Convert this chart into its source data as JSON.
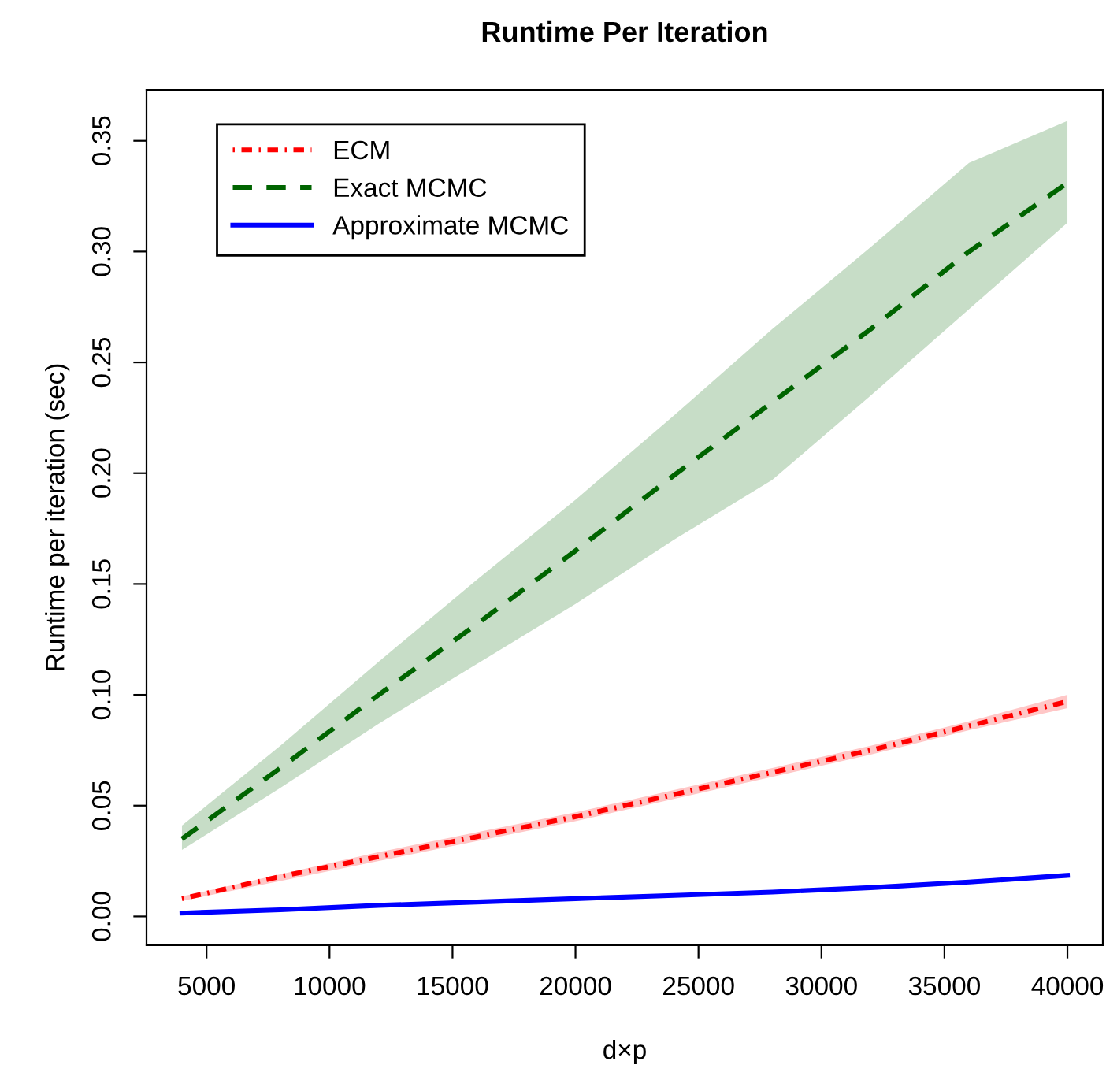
{
  "chart_data": {
    "type": "line",
    "title": "Runtime Per Iteration",
    "xlabel": "d×p",
    "ylabel": "Runtime per iteration (sec)",
    "x": [
      4000,
      8000,
      12000,
      16000,
      20000,
      24000,
      28000,
      32000,
      36000,
      40000
    ],
    "series": [
      {
        "name": "ECM",
        "color": "#ff0000",
        "line_style": "dashdot",
        "values": [
          0.008,
          0.018,
          0.027,
          0.036,
          0.045,
          0.055,
          0.065,
          0.075,
          0.086,
          0.097
        ],
        "lower": [
          0.007,
          0.016,
          0.025,
          0.034,
          0.043,
          0.053,
          0.063,
          0.073,
          0.084,
          0.094
        ],
        "upper": [
          0.009,
          0.019,
          0.029,
          0.038,
          0.047,
          0.057,
          0.067,
          0.077,
          0.088,
          0.1
        ]
      },
      {
        "name": "Exact MCMC",
        "color": "#006400",
        "line_style": "dashed",
        "values": [
          0.035,
          0.067,
          0.1,
          0.132,
          0.165,
          0.199,
          0.232,
          0.265,
          0.3,
          0.331
        ],
        "lower": [
          0.03,
          0.058,
          0.087,
          0.114,
          0.141,
          0.17,
          0.197,
          0.235,
          0.274,
          0.313
        ],
        "upper": [
          0.041,
          0.077,
          0.115,
          0.152,
          0.188,
          0.226,
          0.265,
          0.302,
          0.34,
          0.359
        ]
      },
      {
        "name": "Approximate MCMC",
        "color": "#0000ff",
        "line_style": "solid",
        "values": [
          0.0015,
          0.003,
          0.005,
          0.0065,
          0.008,
          0.0095,
          0.011,
          0.013,
          0.0155,
          0.0185
        ],
        "lower": [
          0.001,
          0.0025,
          0.0045,
          0.006,
          0.0075,
          0.009,
          0.0105,
          0.012,
          0.0145,
          0.0175
        ],
        "upper": [
          0.002,
          0.0035,
          0.0055,
          0.007,
          0.0085,
          0.01,
          0.0115,
          0.014,
          0.0165,
          0.0195
        ]
      }
    ],
    "xlim": [
      2560,
      41440
    ],
    "ylim": [
      -0.013,
      0.373
    ],
    "xticks": [
      5000,
      10000,
      15000,
      20000,
      25000,
      30000,
      35000,
      40000
    ],
    "yticks": [
      {
        "value": 0,
        "label": "0.00"
      },
      0.05,
      {
        "value": 0.1,
        "label": "0.10"
      },
      0.15,
      {
        "value": 0.2,
        "label": "0.20"
      },
      0.25,
      {
        "value": 0.3,
        "label": "0.30"
      },
      0.35
    ],
    "grid": false,
    "legend": "top left",
    "marker": "none"
  }
}
